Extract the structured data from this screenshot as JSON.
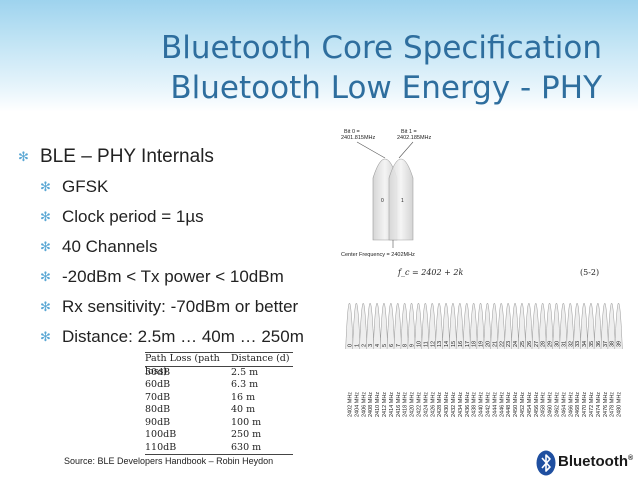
{
  "title": {
    "line1": "Bluetooth Core Specification",
    "line2": "Bluetooth Low Energy - PHY"
  },
  "bullets": [
    {
      "level": 1,
      "text": "BLE – PHY Internals"
    },
    {
      "level": 2,
      "text": "GFSK"
    },
    {
      "level": 2,
      "text": "Clock period = 1µs"
    },
    {
      "level": 2,
      "text": "40 Channels"
    },
    {
      "level": 2,
      "text": "-20dBm < Tx power < 10dBm"
    },
    {
      "level": 2,
      "text": "Rx sensitivity: -70dBm or better"
    },
    {
      "level": 2,
      "text": "Distance: 2.5m …  40m … 250m"
    }
  ],
  "table": {
    "headers": [
      "Path Loss (path loss)",
      "Distance (d)"
    ],
    "rows": [
      [
        "50dB",
        "2.5 m"
      ],
      [
        "60dB",
        "6.3 m"
      ],
      [
        "70dB",
        "16 m"
      ],
      [
        "80dB",
        "40 m"
      ],
      [
        "90dB",
        "100 m"
      ],
      [
        "100dB",
        "250 m"
      ],
      [
        "110dB",
        "630 m"
      ]
    ]
  },
  "gfsk_diagram": {
    "bit0_label": "Bit 0 =",
    "bit0_freq": "2401.815MHz",
    "bit1_label": "Bit 1 =",
    "bit1_freq": "2402.185MHz",
    "bit0_mark": "0",
    "bit1_mark": "1",
    "center_label": "Center Frequency = 2402MHz"
  },
  "spectrum": {
    "formula": "f_c = 2402 + 2k",
    "equation_number": "(5-2)",
    "channels": [
      "0",
      "1",
      "2",
      "3",
      "4",
      "5",
      "6",
      "7",
      "8",
      "9",
      "10",
      "11",
      "12",
      "13",
      "14",
      "15",
      "16",
      "17",
      "18",
      "19",
      "20",
      "21",
      "22",
      "23",
      "24",
      "25",
      "26",
      "27",
      "28",
      "29",
      "30",
      "31",
      "32",
      "33",
      "34",
      "35",
      "36",
      "37",
      "38",
      "39"
    ],
    "frequencies": [
      "2402 MHz",
      "2404 MHz",
      "2406 MHz",
      "2408 MHz",
      "2410 MHz",
      "2412 MHz",
      "2414 MHz",
      "2416 MHz",
      "2418 MHz",
      "2420 MHz",
      "2422 MHz",
      "2424 MHz",
      "2426 MHz",
      "2428 MHz",
      "2430 MHz",
      "2432 MHz",
      "2434 MHz",
      "2436 MHz",
      "2438 MHz",
      "2440 MHz",
      "2442 MHz",
      "2444 MHz",
      "2446 MHz",
      "2448 MHz",
      "2450 MHz",
      "2452 MHz",
      "2454 MHz",
      "2456 MHz",
      "2458 MHz",
      "2460 MHz",
      "2462 MHz",
      "2464 MHz",
      "2466 MHz",
      "2468 MHz",
      "2470 MHz",
      "2472 MHz",
      "2474 MHz",
      "2476 MHz",
      "2478 MHz",
      "2480 MHz"
    ]
  },
  "source": "Source: BLE Developers Handbook – Robin Heydon",
  "logo": {
    "text": "Bluetooth",
    "mark": "®"
  },
  "colors": {
    "title": "#2e6e9e",
    "bullet": "#5aa7d4",
    "header_gradient_top": "#9ed3ee"
  }
}
